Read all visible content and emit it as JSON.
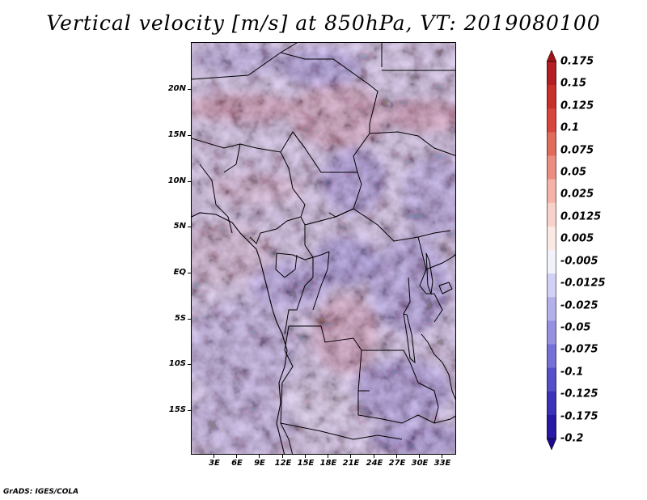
{
  "title": "Vertical velocity [m/s] at 850hPa, VT: 2019080100",
  "credit": "GrADS: IGES/COLA",
  "map": {
    "lat_labels": [
      "20N",
      "15N",
      "10N",
      "5N",
      "EQ",
      "5S",
      "10S",
      "15S"
    ],
    "lon_labels": [
      "3E",
      "6E",
      "9E",
      "12E",
      "15E",
      "18E",
      "21E",
      "24E",
      "27E",
      "30E",
      "33E"
    ],
    "field": "vertical velocity at 850 hPa"
  },
  "colorbar": {
    "labels": [
      "0.175",
      "0.15",
      "0.125",
      "0.1",
      "0.075",
      "0.05",
      "0.025",
      "0.0125",
      "0.005",
      "-0.005",
      "-0.0125",
      "-0.025",
      "-0.05",
      "-0.075",
      "-0.1",
      "-0.125",
      "-0.175",
      "-0.2"
    ],
    "colors": [
      "#a01418",
      "#b21e22",
      "#c8302c",
      "#d6463c",
      "#e06a5c",
      "#ea8e82",
      "#f4b2a8",
      "#f8d2ca",
      "#fce8e4",
      "#f2f2fb",
      "#d2d0f4",
      "#b4b0ea",
      "#9690e0",
      "#7670d6",
      "#5650c8",
      "#3c32b8",
      "#2818a4",
      "#1c0a8a"
    ]
  }
}
